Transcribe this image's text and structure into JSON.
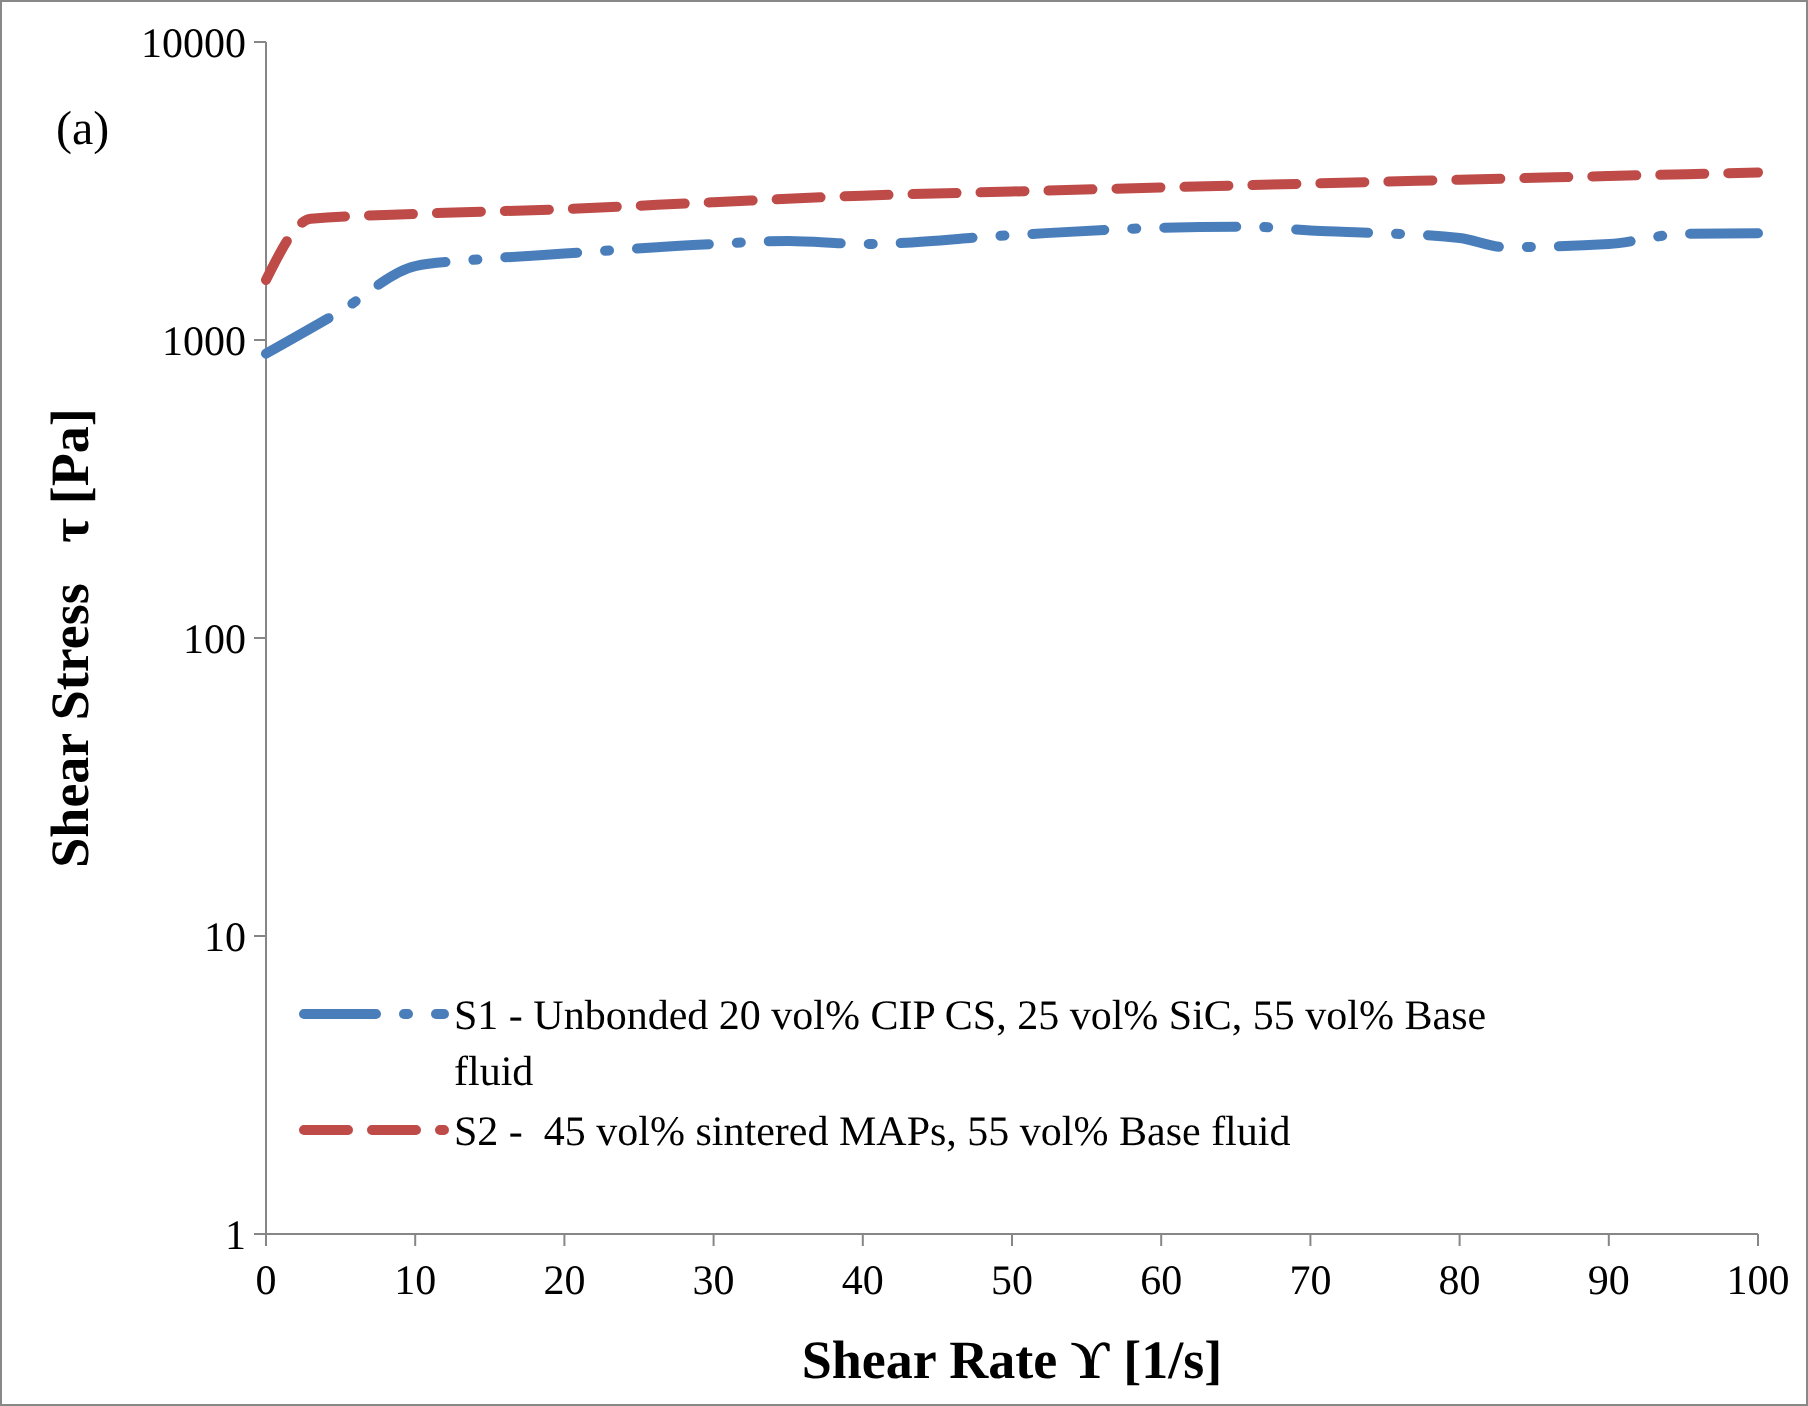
{
  "chart_data": {
    "type": "line",
    "title": "(a)",
    "xlabel": "Shear Rate ϒ [1/s]",
    "ylabel": "Shear Stress   τ [Pa]",
    "log": "y",
    "xlim": [
      0,
      100
    ],
    "xticks": [
      0,
      10,
      20,
      30,
      40,
      50,
      60,
      70,
      80,
      90,
      100
    ],
    "ylim": [
      1,
      10000
    ],
    "yticks": [
      1,
      10,
      100,
      1000,
      10000
    ],
    "grid": false,
    "legend": "bottom",
    "series": [
      {
        "name": "S1 - Unbonded 20 vol% CIP CS, 25 vol% SiC, 55 vol% Base fluid",
        "color": "#4a7ebb",
        "line_style": "dashdot",
        "x": [
          0,
          5,
          10,
          13.5,
          20,
          30,
          35,
          40,
          50,
          60,
          66,
          70,
          73,
          80,
          83,
          90,
          95,
          100
        ],
        "values": [
          900,
          1250,
          1770,
          1850,
          1950,
          2100,
          2150,
          2100,
          2250,
          2380,
          2400,
          2330,
          2300,
          2200,
          2050,
          2100,
          2270,
          2280
        ]
      },
      {
        "name": "S2 -  45 vol% sintered MAPs, 55 vol% Base fluid",
        "color": "#be4b48",
        "line_style": "dashed",
        "x": [
          0,
          3,
          10,
          20,
          30,
          40,
          50,
          60,
          70,
          80,
          90,
          100
        ],
        "values": [
          1590,
          2550,
          2650,
          2750,
          2900,
          3050,
          3150,
          3250,
          3350,
          3450,
          3550,
          3650
        ]
      }
    ]
  }
}
